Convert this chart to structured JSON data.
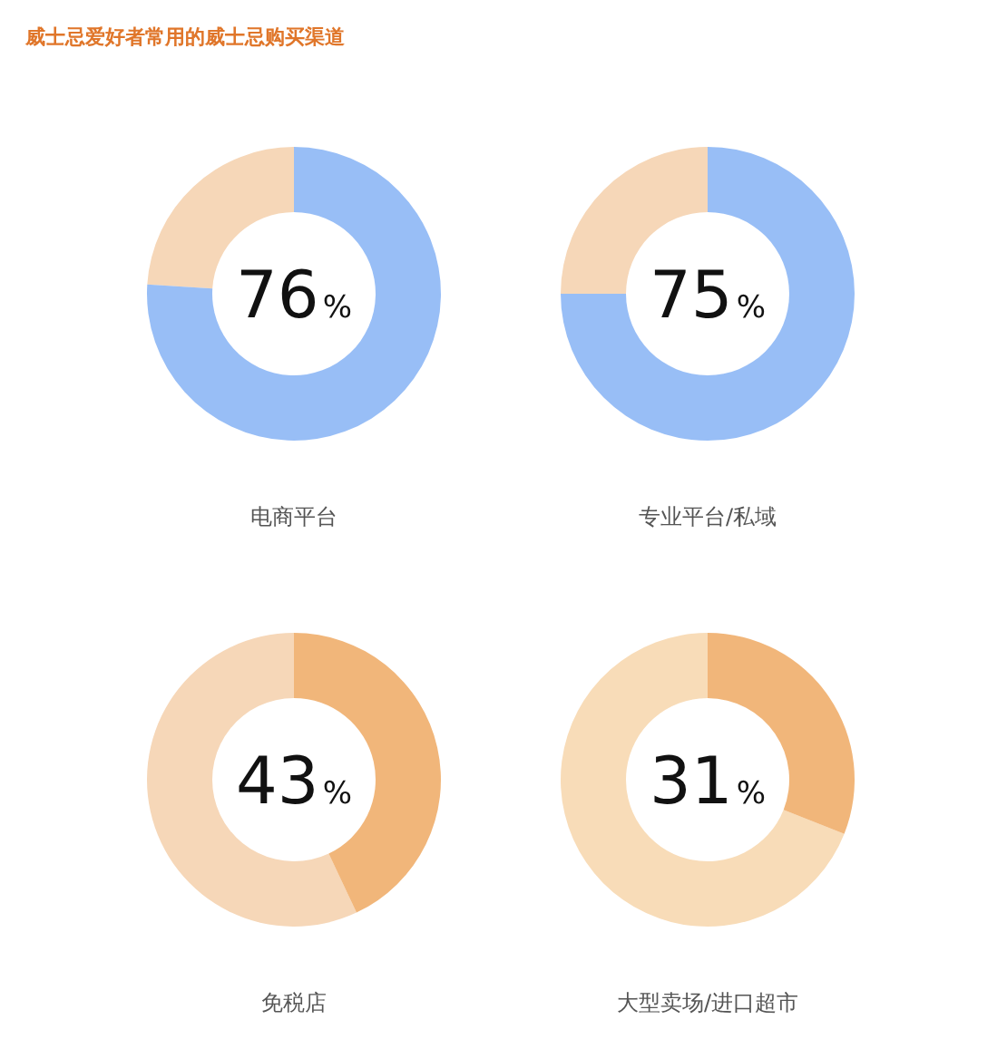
{
  "chart_data": [
    {
      "type": "donut",
      "title": "威士忌爱好者常用的威士忌购买渠道",
      "xlabel": "电商平台",
      "categories": [
        null,
        null
      ],
      "values": [
        76,
        24
      ],
      "colors": [
        "#8db7f5",
        "#f6d7b8"
      ],
      "annotations": [
        "76%"
      ]
    },
    {
      "type": "donut",
      "xlabel": "专业平台/私域",
      "categories": [
        null,
        null
      ],
      "values": [
        75,
        25
      ],
      "colors": [
        "#8db7f5",
        "#f6d7b8"
      ],
      "annotations": [
        "75%"
      ]
    },
    {
      "type": "donut",
      "xlabel": "免税店",
      "categories": [
        null,
        null
      ],
      "values": [
        43,
        57
      ],
      "colors": [
        "#f0ae6c",
        "#f6d7b8"
      ],
      "annotations": [
        "43%"
      ]
    },
    {
      "type": "donut",
      "xlabel": "大型卖场/进口超市",
      "categories": [
        null,
        null
      ],
      "values": [
        31,
        69
      ],
      "colors": [
        "#f0ae6c",
        "#f8dcb8"
      ],
      "annotations": [
        "31%"
      ]
    }
  ]
}
